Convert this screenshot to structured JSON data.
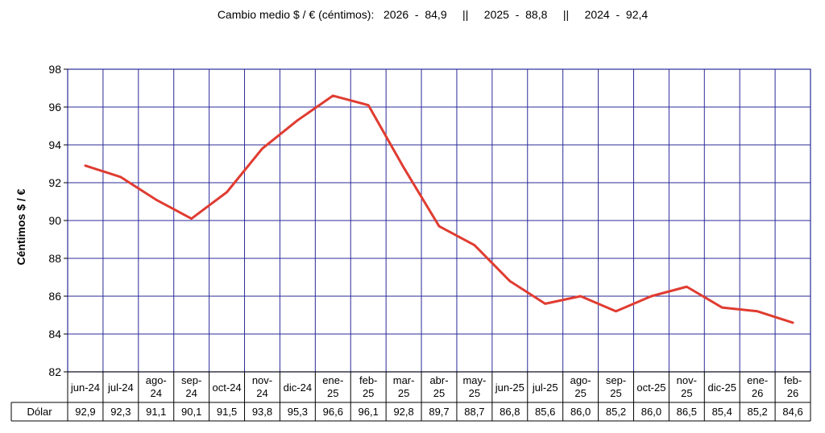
{
  "title": "Cambio medio $ / € (céntimos):   2026  -  84,9     ||     2025  -  88,8     ||     2024  -  92,4",
  "chart_data": {
    "type": "line",
    "ylabel": "Céntimos  $ / €",
    "ylim": [
      82,
      98
    ],
    "yticks": [
      "82",
      "84",
      "86",
      "88",
      "90",
      "92",
      "94",
      "96",
      "98"
    ],
    "grid": true,
    "categories": [
      [
        "jun-24"
      ],
      [
        "jul-24"
      ],
      [
        "ago-",
        "24"
      ],
      [
        "sep-",
        "24"
      ],
      [
        "oct-24"
      ],
      [
        "nov-",
        "24"
      ],
      [
        "dic-24"
      ],
      [
        "ene-",
        "25"
      ],
      [
        "feb-",
        "25"
      ],
      [
        "mar-",
        "25"
      ],
      [
        "abr-",
        "25"
      ],
      [
        "may-",
        "25"
      ],
      [
        "jun-25"
      ],
      [
        "jul-25"
      ],
      [
        "ago-",
        "25"
      ],
      [
        "sep-",
        "25"
      ],
      [
        "oct-25"
      ],
      [
        "nov-",
        "25"
      ],
      [
        "dic-25"
      ],
      [
        "ene-",
        "26"
      ],
      [
        "feb-",
        "26"
      ]
    ],
    "series": [
      {
        "name": "Dólar",
        "color": "#e03c31",
        "values": [
          92.9,
          92.3,
          91.1,
          90.1,
          91.5,
          93.8,
          95.3,
          96.6,
          96.1,
          92.8,
          89.7,
          88.7,
          86.8,
          85.6,
          86.0,
          85.2,
          86.0,
          86.5,
          85.4,
          85.2,
          84.6
        ],
        "labels": [
          "92,9",
          "92,3",
          "91,1",
          "90,1",
          "91,5",
          "93,8",
          "95,3",
          "96,6",
          "96,1",
          "92,8",
          "89,7",
          "88,7",
          "86,8",
          "85,6",
          "86,0",
          "85,2",
          "86,0",
          "86,5",
          "85,4",
          "85,2",
          "84,6"
        ]
      }
    ],
    "gridColor": "#2b2b9a",
    "frameColor": "#2b2b9a"
  }
}
